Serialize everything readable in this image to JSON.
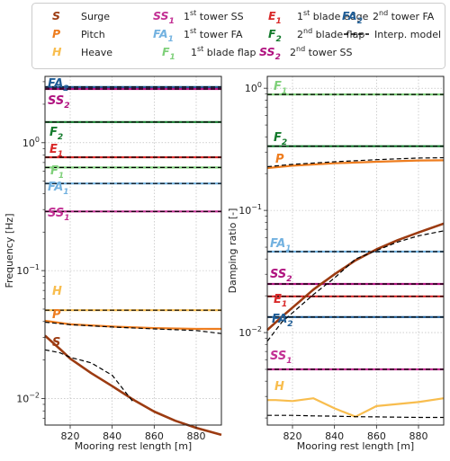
{
  "colors": {
    "surge": "#9c3b11",
    "pitch": "#ee7d1f",
    "heave": "#f8bd4e",
    "ss1": "#c22f93",
    "fa1": "#73b2e0",
    "f1": "#7fd07a",
    "e1": "#d92a2a",
    "f2": "#137a2c",
    "ss2": "#b0127f",
    "fa2": "#1f5d96",
    "model": "#000000",
    "grid": "#b0b0b0"
  },
  "legend": [
    {
      "key": "surge",
      "sym": "S",
      "sub": "",
      "label": "Surge",
      "sup": "",
      "rest": ""
    },
    {
      "key": "pitch",
      "sym": "P",
      "sub": "",
      "label": "Pitch",
      "sup": "",
      "rest": ""
    },
    {
      "key": "heave",
      "sym": "H",
      "sub": "",
      "label": "Heave",
      "sup": "",
      "rest": ""
    },
    {
      "key": "ss1",
      "sym": "SS",
      "sub": "1",
      "label": "1",
      "sup": "st",
      "rest": " tower SS"
    },
    {
      "key": "fa1",
      "sym": "FA",
      "sub": "1",
      "label": "1",
      "sup": "st",
      "rest": " tower FA"
    },
    {
      "key": "f1",
      "sym": "F",
      "sub": "1",
      "label": "1",
      "sup": "st",
      "rest": " blade flap"
    },
    {
      "key": "e1",
      "sym": "E",
      "sub": "1",
      "label": "1",
      "sup": "st",
      "rest": " blade edge"
    },
    {
      "key": "f2",
      "sym": "F",
      "sub": "2",
      "label": "2",
      "sup": "nd",
      "rest": " blade flap"
    },
    {
      "key": "ss2",
      "sym": "SS",
      "sub": "2",
      "label": "2",
      "sup": "nd",
      "rest": " tower SS"
    },
    {
      "key": "fa2",
      "sym": "FA",
      "sub": "2",
      "label": "2",
      "sup": "nd",
      "rest": " tower FA"
    },
    {
      "key": "model",
      "sym": "",
      "sub": "",
      "label": "Interp. model",
      "sup": "",
      "rest": ""
    }
  ],
  "chart_data": [
    {
      "type": "line",
      "xlabel": "Mooring rest length [m]",
      "ylabel": "Frequency [Hz]",
      "yscale": "log",
      "xlim": [
        808,
        892
      ],
      "ylim": [
        0.0062,
        3.3
      ],
      "xticks": [
        820,
        840,
        860,
        880
      ],
      "yticks": [
        {
          "v": 0.01,
          "base": "10",
          "exp": "−2"
        },
        {
          "v": 0.1,
          "base": "10",
          "exp": "−1"
        },
        {
          "v": 1,
          "base": "10",
          "exp": "0"
        }
      ],
      "grid": true,
      "series": [
        {
          "key": "fa2",
          "sym": "FA",
          "sub": "2",
          "x": [
            808,
            892
          ],
          "y": [
            2.72,
            2.72
          ],
          "model": [
            2.72,
            2.72
          ]
        },
        {
          "key": "ss2",
          "sym": "SS",
          "sub": "2",
          "x": [
            808,
            892
          ],
          "y": [
            2.63,
            2.63
          ],
          "model": [
            2.63,
            2.63
          ]
        },
        {
          "key": "f2",
          "sym": "F",
          "sub": "2",
          "x": [
            808,
            892
          ],
          "y": [
            1.45,
            1.45
          ],
          "model": [
            1.45,
            1.45
          ]
        },
        {
          "key": "e1",
          "sym": "E",
          "sub": "1",
          "x": [
            808,
            892
          ],
          "y": [
            0.77,
            0.77
          ],
          "model": [
            0.77,
            0.77
          ]
        },
        {
          "key": "f1",
          "sym": "F",
          "sub": "1",
          "x": [
            808,
            892
          ],
          "y": [
            0.64,
            0.64
          ],
          "model": [
            0.64,
            0.64
          ]
        },
        {
          "key": "fa1",
          "sym": "FA",
          "sub": "1",
          "x": [
            808,
            892
          ],
          "y": [
            0.48,
            0.48
          ],
          "model": [
            0.48,
            0.48
          ]
        },
        {
          "key": "ss1",
          "sym": "SS",
          "sub": "1",
          "x": [
            808,
            892
          ],
          "y": [
            0.29,
            0.29
          ],
          "model": [
            0.29,
            0.29
          ]
        },
        {
          "key": "heave",
          "sym": "H",
          "sub": "",
          "x": [
            808,
            892
          ],
          "y": [
            0.049,
            0.049
          ],
          "model": [
            0.049,
            0.049
          ]
        },
        {
          "key": "pitch",
          "sym": "P",
          "sub": "",
          "x": [
            808,
            820,
            840,
            860,
            880,
            892
          ],
          "y": [
            0.0405,
            0.038,
            0.0365,
            0.0355,
            0.035,
            0.035
          ],
          "model": [
            0.0395,
            0.0378,
            0.0362,
            0.035,
            0.034,
            0.0322
          ]
        },
        {
          "key": "surge",
          "sym": "S",
          "sub": "",
          "x": [
            808,
            815,
            820,
            830,
            840,
            850,
            860,
            870,
            880,
            892
          ],
          "y": [
            0.031,
            0.0245,
            0.0205,
            0.0158,
            0.0125,
            0.0098,
            0.0079,
            0.0067,
            0.0059,
            0.0052
          ],
          "model": [
            0.024,
            0.0228,
            0.021,
            0.019,
            0.0152,
            0.0094
          ]
        }
      ],
      "surge_model_x": [
        808,
        815,
        820,
        830,
        840,
        850
      ]
    },
    {
      "type": "line",
      "xlabel": "Mooring rest length [m]",
      "ylabel": "Damping ratio [-]",
      "yscale": "log",
      "xlim": [
        808,
        892
      ],
      "ylim": [
        0.00175,
        1.25
      ],
      "xticks": [
        820,
        840,
        860,
        880
      ],
      "yticks": [
        {
          "v": 0.01,
          "base": "10",
          "exp": "−2"
        },
        {
          "v": 0.1,
          "base": "10",
          "exp": "−1"
        },
        {
          "v": 1,
          "base": "10",
          "exp": "0"
        }
      ],
      "grid": true,
      "series": [
        {
          "key": "f1",
          "sym": "F",
          "sub": "1",
          "x": [
            808,
            892
          ],
          "y": [
            0.89,
            0.89
          ],
          "model": [
            0.89,
            0.89
          ]
        },
        {
          "key": "f2",
          "sym": "F",
          "sub": "2",
          "x": [
            808,
            892
          ],
          "y": [
            0.335,
            0.335
          ],
          "model": [
            0.335,
            0.335
          ]
        },
        {
          "key": "pitch",
          "sym": "P",
          "sub": "",
          "x": [
            808,
            820,
            840,
            860,
            880,
            892
          ],
          "y": [
            0.222,
            0.232,
            0.243,
            0.25,
            0.256,
            0.257
          ],
          "model": [
            0.228,
            0.238,
            0.25,
            0.26,
            0.268,
            0.27
          ]
        },
        {
          "key": "fa1",
          "sym": "FA",
          "sub": "1",
          "x": [
            808,
            892
          ],
          "y": [
            0.046,
            0.046
          ],
          "model": [
            0.046,
            0.046
          ]
        },
        {
          "key": "ss2",
          "sym": "SS",
          "sub": "2",
          "x": [
            808,
            892
          ],
          "y": [
            0.025,
            0.025
          ],
          "model": [
            0.025,
            0.025
          ]
        },
        {
          "key": "e1",
          "sym": "E",
          "sub": "1",
          "x": [
            808,
            892
          ],
          "y": [
            0.0198,
            0.0198
          ],
          "model": [
            0.0198,
            0.0198
          ]
        },
        {
          "key": "fa2",
          "sym": "FA",
          "sub": "2",
          "x": [
            808,
            892
          ],
          "y": [
            0.0134,
            0.0134
          ],
          "model": [
            0.0134,
            0.0134
          ]
        },
        {
          "key": "ss1",
          "sym": "SS",
          "sub": "1",
          "x": [
            808,
            892
          ],
          "y": [
            0.005,
            0.005
          ],
          "model": [
            0.005,
            0.005
          ]
        },
        {
          "key": "surge",
          "sym": "S",
          "sub": "",
          "x": [
            808,
            815,
            820,
            830,
            840,
            850,
            860,
            870,
            880,
            892
          ],
          "y": [
            0.0105,
            0.0135,
            0.016,
            0.0225,
            0.03,
            0.039,
            0.048,
            0.057,
            0.066,
            0.078
          ],
          "model": [
            0.0085,
            0.0122,
            0.0145,
            0.0205,
            0.028,
            0.04,
            0.047,
            0.055,
            0.062,
            0.068
          ]
        },
        {
          "key": "heave",
          "sym": "H",
          "sub": "",
          "x": [
            808,
            812,
            820,
            830,
            840,
            850,
            860,
            870,
            880,
            892
          ],
          "y": [
            0.0028,
            0.0028,
            0.00275,
            0.0029,
            0.0024,
            0.00205,
            0.0025,
            0.0026,
            0.0027,
            0.0029
          ],
          "model": [
            0.0021,
            0.0021,
            0.0021,
            0.00208,
            0.00207,
            0.00205,
            0.00204,
            0.00203,
            0.00202,
            0.00202
          ]
        }
      ]
    }
  ]
}
